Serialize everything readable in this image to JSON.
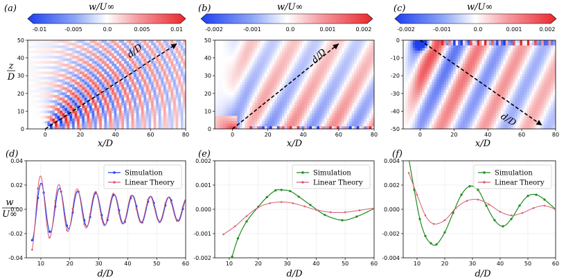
{
  "figure": {
    "panel_labels": [
      "(a)",
      "(b)",
      "(c)",
      "(d)",
      "(e)",
      "(f)"
    ]
  },
  "colors": {
    "positive": "#e8262b",
    "negative": "#1e3ff0",
    "sim_blue": "#1f3ff5",
    "sim_green": "#1f8a1f",
    "theory_red": "#d65a6f"
  },
  "chart_data": [
    {
      "type": "heatmap",
      "panel": "(a)",
      "colorbar": {
        "title": "w/U∞",
        "ticks": [
          "-0.01",
          "-0.005",
          "0.0",
          "0.005",
          "0.01"
        ],
        "vmin": -0.01,
        "vmax": 0.01
      },
      "xlabel": "x/D",
      "ylabel": "z/D",
      "xlim": [
        -10,
        80
      ],
      "ylim": [
        0,
        50
      ],
      "xticks": [
        "0",
        "20",
        "40",
        "60",
        "80"
      ],
      "yticks": [
        "0",
        "10",
        "20",
        "30",
        "40",
        "50"
      ],
      "annotation": "d/D",
      "arrow": {
        "from": [
          0,
          0
        ],
        "to": [
          75,
          48
        ]
      }
    },
    {
      "type": "heatmap",
      "panel": "(b)",
      "colorbar": {
        "title": "w/U∞",
        "ticks": [
          "-0.002",
          "-0.001",
          "0.0",
          "0.001",
          "0.002"
        ],
        "vmin": -0.002,
        "vmax": 0.002
      },
      "xlabel": "x/D",
      "xlim": [
        -10,
        80
      ],
      "ylim": [
        0,
        50
      ],
      "xticks": [
        "0",
        "20",
        "40",
        "60",
        "80"
      ],
      "yticks": [
        "0",
        "10",
        "20",
        "30",
        "40",
        "50"
      ],
      "annotation": "d/D",
      "arrow": {
        "from": [
          0,
          0
        ],
        "to": [
          60,
          48
        ]
      }
    },
    {
      "type": "heatmap",
      "panel": "(c)",
      "colorbar": {
        "title": "w/U∞",
        "ticks": [
          "-0.002",
          "-0.001",
          "0.0",
          "0.001",
          "0.002"
        ],
        "vmin": -0.002,
        "vmax": 0.002
      },
      "xlabel": "x/D",
      "xlim": [
        -10,
        80
      ],
      "ylim": [
        -50,
        0
      ],
      "xticks": [
        "0",
        "20",
        "40",
        "60",
        "80"
      ],
      "yticks": [
        "0",
        "-10",
        "-20",
        "-30",
        "-40",
        "-50"
      ],
      "annotation": "d/D",
      "arrow": {
        "from": [
          0,
          0
        ],
        "to": [
          72,
          -48
        ]
      }
    },
    {
      "type": "line",
      "panel": "(d)",
      "xlabel": "d/D",
      "ylabel": "w/U∞",
      "xlim": [
        5,
        60
      ],
      "ylim": [
        -0.04,
        0.04
      ],
      "xticks": [
        "10",
        "20",
        "30",
        "40",
        "50",
        "60"
      ],
      "yticks": [
        "0.04",
        "0.02",
        "0.00",
        "-0.02",
        "-0.04"
      ],
      "legend_position": "top-right",
      "series": [
        {
          "name": "Simulation",
          "model": {
            "A": 0.0255,
            "lambda": 6.3,
            "phase": 2.2,
            "decay": 0.45,
            "d0": 7,
            "c": 0
          }
        },
        {
          "name": "Linear Theory",
          "model": {
            "A": 0.034,
            "lambda": 6.3,
            "phase": 2.4,
            "decay": 0.6,
            "d0": 7,
            "c": 0
          }
        }
      ]
    },
    {
      "type": "line",
      "panel": "(e)",
      "xlabel": "d/D",
      "xlim": [
        5,
        60
      ],
      "ylim": [
        -0.002,
        0.002
      ],
      "xticks": [
        "10",
        "20",
        "30",
        "40",
        "50",
        "60"
      ],
      "yticks": [
        "0.002",
        "0.001",
        "0.000",
        "-0.001",
        "-0.002"
      ],
      "legend_position": "top-right",
      "series": [
        {
          "name": "Simulation",
          "points": [
            [
              11,
              -0.00195
            ],
            [
              13,
              -0.0012
            ],
            [
              16,
              -0.0005
            ],
            [
              20,
              0.0001
            ],
            [
              23,
              0.0005
            ],
            [
              26,
              0.00078
            ],
            [
              28,
              0.0008
            ],
            [
              31,
              0.00075
            ],
            [
              34,
              0.00052
            ],
            [
              38,
              0.00018
            ],
            [
              43,
              -0.00023
            ],
            [
              49,
              -0.00045
            ],
            [
              54,
              -0.0003
            ],
            [
              60,
              3e-05
            ]
          ]
        },
        {
          "name": "Linear Theory",
          "points": [
            [
              8,
              -0.00103
            ],
            [
              12,
              -0.0007
            ],
            [
              16,
              -0.00028
            ],
            [
              20,
              8e-05
            ],
            [
              24,
              0.00025
            ],
            [
              28,
              0.0003
            ],
            [
              32,
              0.00025
            ],
            [
              36,
              0.00012
            ],
            [
              40,
              -2e-05
            ],
            [
              45,
              -0.00012
            ],
            [
              50,
              -0.00012
            ],
            [
              55,
              -4e-05
            ],
            [
              60,
              5e-05
            ]
          ]
        }
      ]
    },
    {
      "type": "line",
      "panel": "(f)",
      "xlabel": "d/D",
      "xlim": [
        5,
        60
      ],
      "ylim": [
        -0.004,
        0.004
      ],
      "xticks": [
        "10",
        "20",
        "30",
        "40",
        "50",
        "60"
      ],
      "yticks": [
        "0.004",
        "0.002",
        "0.000",
        "-0.002",
        "-0.004"
      ],
      "legend_position": "top-right",
      "series": [
        {
          "name": "Simulation",
          "points": [
            [
              7,
              0.0042
            ],
            [
              9,
              0.0016
            ],
            [
              11,
              -0.0008
            ],
            [
              13,
              -0.0022
            ],
            [
              15,
              -0.0028
            ],
            [
              17,
              -0.0029
            ],
            [
              20,
              -0.0019
            ],
            [
              23,
              -0.0003
            ],
            [
              26,
              0.0012
            ],
            [
              29,
              0.0019
            ],
            [
              32,
              0.0016
            ],
            [
              35,
              0.0003
            ],
            [
              38,
              -0.0009
            ],
            [
              41,
              -0.0014
            ],
            [
              44,
              -0.0008
            ],
            [
              47,
              0.0003
            ],
            [
              50,
              0.0011
            ],
            [
              53,
              0.0012
            ],
            [
              56,
              0.0008
            ],
            [
              60,
              0.0
            ]
          ]
        },
        {
          "name": "Linear Theory",
          "points": [
            [
              7,
              0.003
            ],
            [
              10,
              0.0012
            ],
            [
              13,
              -0.0005
            ],
            [
              16,
              -0.0012
            ],
            [
              20,
              -0.0009
            ],
            [
              24,
              0.0001
            ],
            [
              28,
              0.0007
            ],
            [
              32,
              0.0008
            ],
            [
              36,
              0.0004
            ],
            [
              40,
              -0.0002
            ],
            [
              44,
              -0.0005
            ],
            [
              48,
              -0.0003
            ],
            [
              52,
              0.0001
            ],
            [
              56,
              0.0003
            ],
            [
              60,
              0.0
            ]
          ]
        }
      ]
    }
  ]
}
